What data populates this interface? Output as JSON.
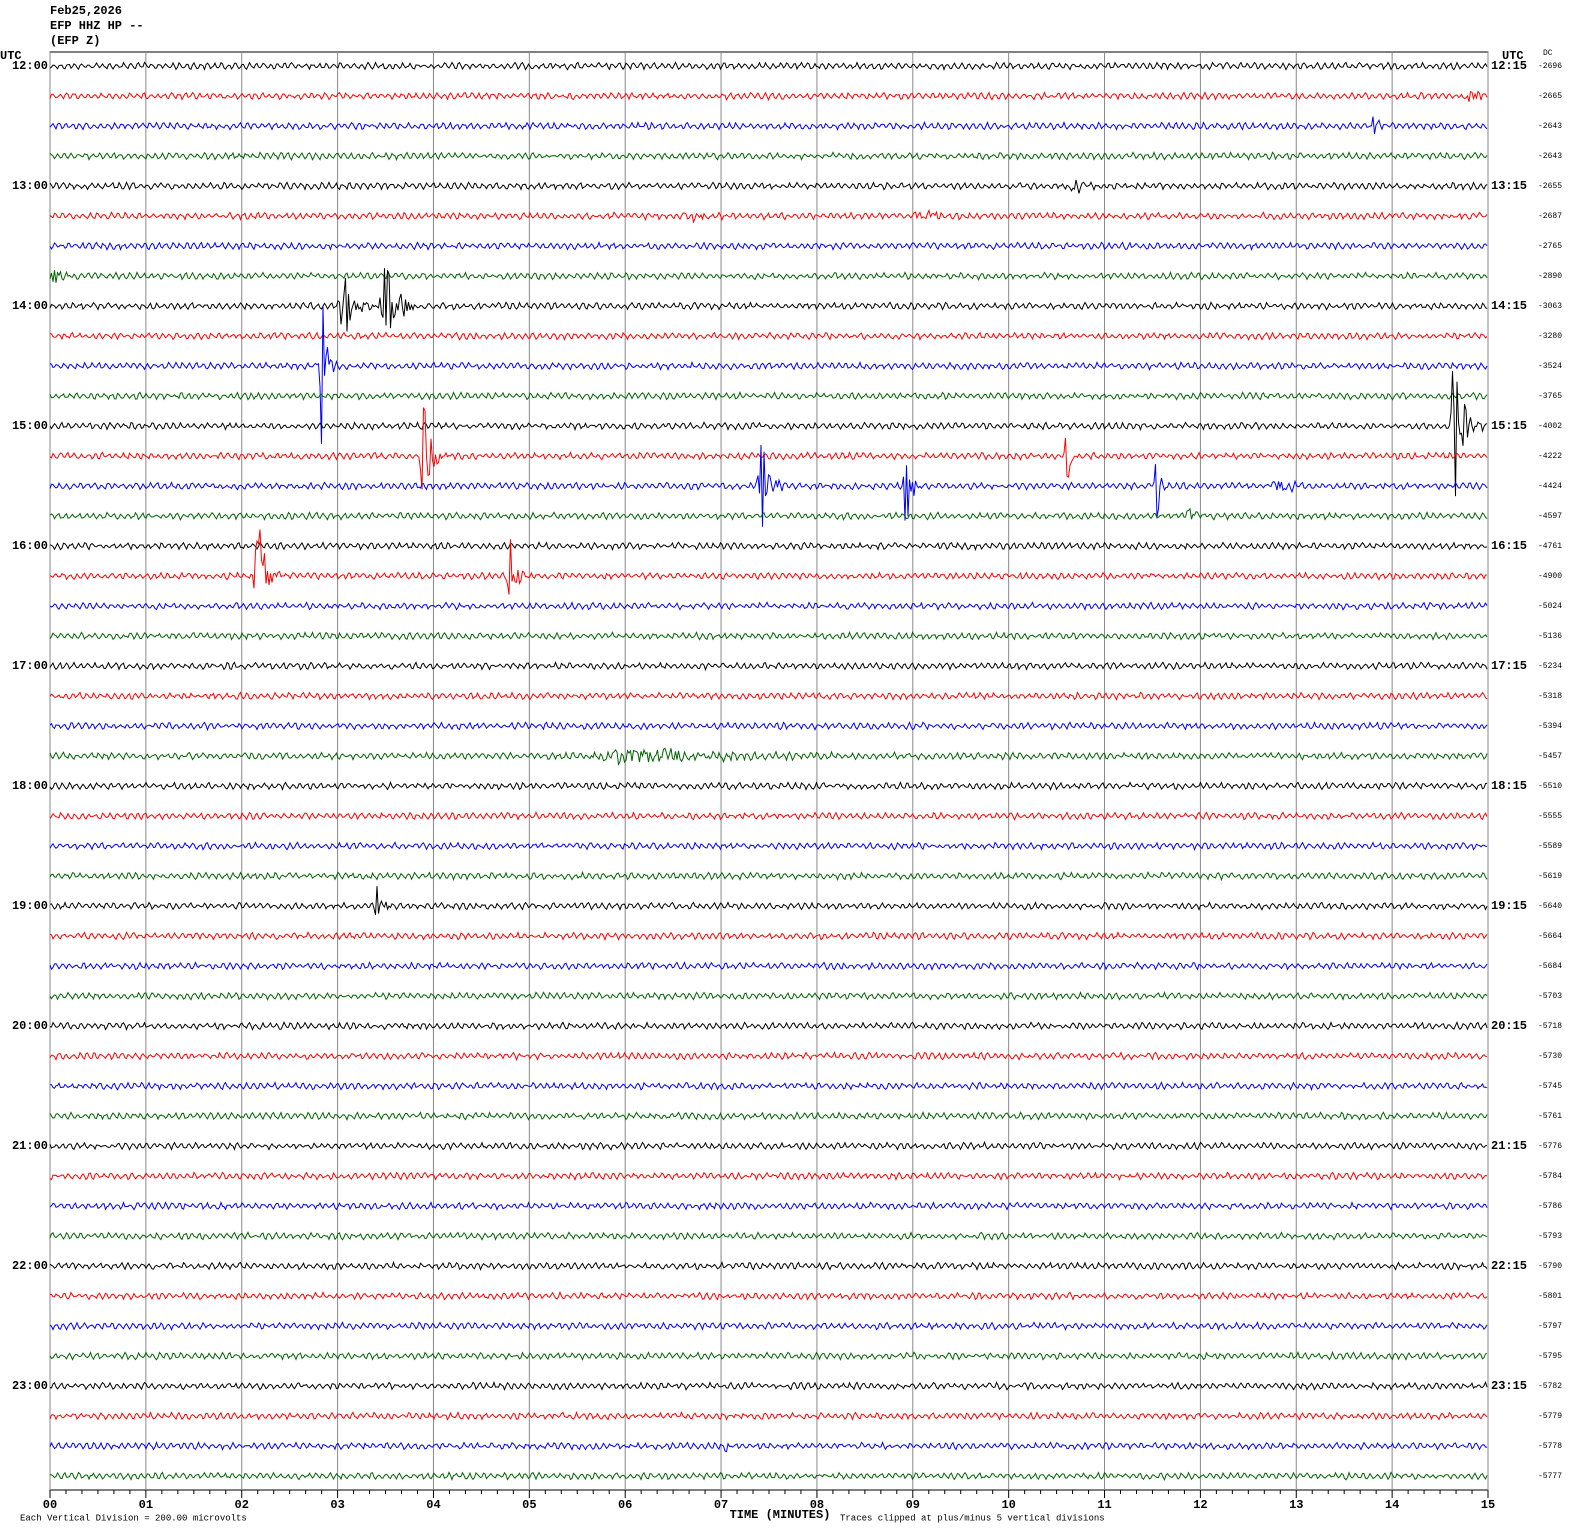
{
  "header": {
    "date": "Feb25,2026",
    "station": "EFP HHZ HP --",
    "channel": "(EFP Z)"
  },
  "left_axis": {
    "label": "UTC",
    "times": [
      "12:00",
      "13:00",
      "14:00",
      "15:00",
      "16:00",
      "17:00",
      "18:00",
      "19:00",
      "20:00",
      "21:00",
      "22:00",
      "23:00"
    ]
  },
  "right_axis": {
    "label": "UTC",
    "times": [
      "12:15",
      "13:15",
      "14:15",
      "15:15",
      "16:15",
      "17:15",
      "18:15",
      "19:15",
      "20:15",
      "21:15",
      "22:15",
      "23:15"
    ],
    "dc_label": "DC",
    "dc_values": [
      -2696,
      -2665,
      -2643,
      -2643,
      -2655,
      -2687,
      -2765,
      -2890,
      -3063,
      -3280,
      -3524,
      -3765,
      -4002,
      -4222,
      -4424,
      -4597,
      -4761,
      -4900,
      -5024,
      -5136,
      -5234,
      -5318,
      -5394,
      -5457,
      -5510,
      -5555,
      -5589,
      -5619,
      -5640,
      -5664,
      -5684,
      -5703,
      -5718,
      -5730,
      -5745,
      -5761,
      -5776,
      -5784,
      -5786,
      -5793,
      -5790,
      -5801,
      -5797,
      -5795,
      -5782,
      -5779,
      -5778,
      -5777
    ]
  },
  "x_axis": {
    "title": "TIME (MINUTES)",
    "ticks": [
      "00",
      "01",
      "02",
      "03",
      "04",
      "05",
      "06",
      "07",
      "08",
      "09",
      "10",
      "11",
      "12",
      "13",
      "14",
      "15"
    ]
  },
  "footer": {
    "scale": "Each Vertical Division =  200.00 microvolts",
    "clip": "Traces clipped at plus/minus 5 vertical divisions"
  },
  "trace_colors": [
    "#000000",
    "#ff0000",
    "#0000ff",
    "#006400"
  ]
}
